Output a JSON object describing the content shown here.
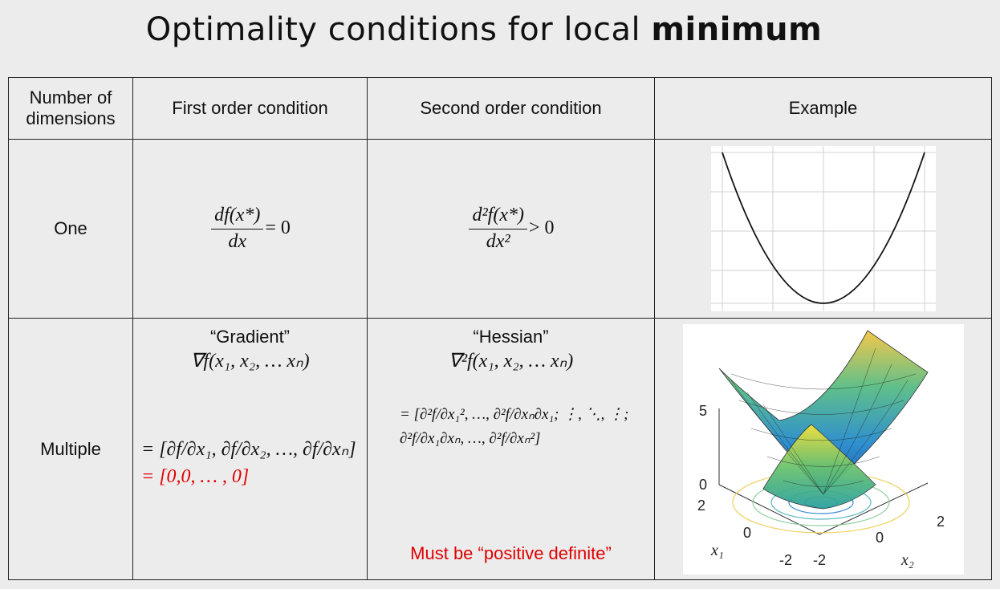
{
  "title": {
    "prefix": "Optimality conditions for local ",
    "bold": "minimum"
  },
  "headers": {
    "dimensions_line1": "Number of",
    "dimensions_line2": "dimensions",
    "first_order": "First order condition",
    "second_order": "Second order condition",
    "example": "Example"
  },
  "row_one": {
    "label": "One",
    "first_num": "df(x*)",
    "first_den": "dx",
    "first_rel": "= 0",
    "second_num": "d²f(x*)",
    "second_den": "dx²",
    "second_rel": "> 0"
  },
  "row_multiple": {
    "label": "Multiple",
    "gradient_title": "“Gradient”",
    "gradient_expr": "∇f(x₁, x₂, … xₙ)",
    "gradient_vector": "= [∂f/∂x₁, ∂f/∂x₂, …, ∂f/∂xₙ]",
    "gradient_zero": "= [0,0, … , 0]",
    "hessian_title": "“Hessian”",
    "hessian_expr": "∇²f(x₁, x₂, … xₙ)",
    "hessian_matrix": "= [∂²f/∂x₁², …, ∂²f/∂xₙ∂x₁; ⋮, ⋱, ⋮; ∂²f/∂x₁∂xₙ, …, ∂²f/∂xₙ²]",
    "hessian_note": "Must be “positive definite”"
  },
  "surface_plot": {
    "z_tick_5": "5",
    "z_tick_0": "0",
    "x1_tick_2": "2",
    "x1_tick_0": "0",
    "x1_tick_m2": "-2",
    "x2_tick_2": "2",
    "x2_tick_0": "0",
    "x2_tick_m2": "-2",
    "x1_label": "x₁",
    "x2_label": "x₂"
  },
  "colors": {
    "background": "#ececec",
    "red_text": "#e00000",
    "surface_low": "#2b7fd4",
    "surface_high": "#f5d033"
  }
}
